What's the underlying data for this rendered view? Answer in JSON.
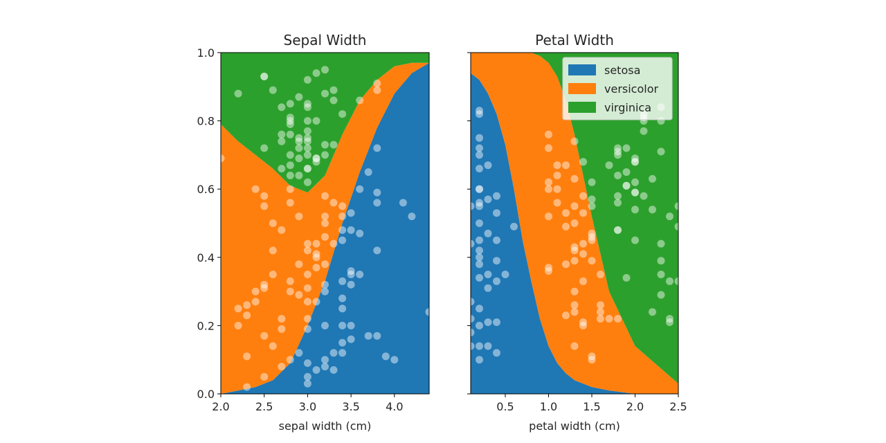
{
  "chart_data": [
    {
      "type": "area",
      "subtype": "stacked-probability",
      "title": "Sepal Width",
      "xlabel": "sepal width (cm)",
      "ylabel": "",
      "xlim": [
        2.0,
        4.4
      ],
      "ylim": [
        0.0,
        1.0
      ],
      "xticks": [
        "2.0",
        "2.5",
        "3.0",
        "3.5",
        "4.0"
      ],
      "yticks": [
        "0.0",
        "0.2",
        "0.4",
        "0.6",
        "0.8",
        "1.0"
      ],
      "categories": [
        "setosa",
        "versicolor",
        "virginica"
      ],
      "series": [
        {
          "name": "setosa",
          "x": [
            2.0,
            2.2,
            2.4,
            2.6,
            2.8,
            3.0,
            3.2,
            3.4,
            3.6,
            3.8,
            4.0,
            4.2,
            4.4
          ],
          "y": [
            0.0,
            0.01,
            0.02,
            0.04,
            0.09,
            0.2,
            0.33,
            0.5,
            0.65,
            0.78,
            0.88,
            0.94,
            0.97
          ]
        },
        {
          "name": "versicolor",
          "x": [
            2.0,
            2.2,
            2.4,
            2.6,
            2.8,
            3.0,
            3.2,
            3.4,
            3.6,
            3.8,
            4.0,
            4.2,
            4.4
          ],
          "y": [
            0.79,
            0.73,
            0.68,
            0.62,
            0.52,
            0.39,
            0.31,
            0.26,
            0.21,
            0.14,
            0.08,
            0.03,
            0.0
          ]
        },
        {
          "name": "virginica",
          "x": [
            2.0,
            2.2,
            2.4,
            2.6,
            2.8,
            3.0,
            3.2,
            3.4,
            3.6,
            3.8,
            4.0,
            4.2,
            4.4
          ],
          "y": [
            0.21,
            0.26,
            0.3,
            0.34,
            0.39,
            0.41,
            0.36,
            0.24,
            0.14,
            0.08,
            0.04,
            0.03,
            0.03
          ]
        }
      ],
      "scatter": {
        "x": [
          2.3,
          2.5,
          2.7,
          2.8,
          2.9,
          3.0,
          3.0,
          3.1,
          3.2,
          3.3,
          3.4,
          3.5,
          3.8,
          3.0,
          3.2,
          2.5,
          2.6,
          3.4,
          3.0,
          3.4,
          3.1,
          3.2,
          3.5,
          3.6,
          3.0,
          3.4,
          3.5,
          3.2,
          3.1,
          3.4,
          4.1,
          4.2,
          3.1,
          3.2,
          3.5,
          3.6,
          3.0,
          3.4,
          3.5,
          2.3,
          3.2,
          3.5,
          3.8,
          3.0,
          3.8,
          3.2,
          3.7,
          3.3,
          3.6,
          3.4,
          3.8,
          3.7,
          3.3,
          3.9,
          3.8,
          3.4,
          3.5,
          4.0,
          4.4,
          3.2,
          2.0,
          2.2,
          2.2,
          2.3,
          2.3,
          2.4,
          2.4,
          2.5,
          2.5,
          2.6,
          2.6,
          2.7,
          2.7,
          2.8,
          2.8,
          2.9,
          2.9,
          3.0,
          3.0,
          3.1,
          3.1,
          3.2,
          3.3,
          3.4,
          2.5,
          2.6,
          2.7,
          2.8,
          2.9,
          3.0,
          3.2,
          3.4,
          2.4,
          2.5,
          2.7,
          2.8,
          2.9,
          3.0,
          3.1,
          2.2,
          2.5,
          2.6,
          2.7,
          2.8,
          2.8,
          2.9,
          3.0,
          3.0,
          3.1,
          3.2,
          3.2,
          3.3,
          3.4,
          3.6,
          3.8,
          3.8,
          2.5,
          2.8,
          3.0,
          2.9,
          3.0,
          3.1,
          2.8,
          3.0,
          2.7,
          2.8,
          2.9,
          3.0,
          3.0,
          2.9,
          2.8,
          3.2,
          3.3,
          2.7,
          3.2,
          2.5,
          3.0,
          3.1,
          3.0,
          2.9,
          3.1,
          3.0,
          2.8,
          3.0,
          2.8,
          3.3
        ],
        "y": [
          0.02,
          0.05,
          0.08,
          0.1,
          0.12,
          0.03,
          0.05,
          0.07,
          0.1,
          0.12,
          0.15,
          0.16,
          0.17,
          0.19,
          0.2,
          0.17,
          0.14,
          0.2,
          0.22,
          0.25,
          0.27,
          0.3,
          0.32,
          0.35,
          0.27,
          0.33,
          0.35,
          0.38,
          0.4,
          0.45,
          0.56,
          0.52,
          0.44,
          0.5,
          0.48,
          0.47,
          0.42,
          0.12,
          0.2,
          0.11,
          0.08,
          0.36,
          0.42,
          0.09,
          0.72,
          0.58,
          0.65,
          0.56,
          0.6,
          0.52,
          0.59,
          0.17,
          0.07,
          0.11,
          0.56,
          0.28,
          0.53,
          0.1,
          0.24,
          0.32,
          0.69,
          0.2,
          0.25,
          0.26,
          0.23,
          0.27,
          0.3,
          0.32,
          0.31,
          0.42,
          0.35,
          0.22,
          0.19,
          0.3,
          0.33,
          0.29,
          0.38,
          0.35,
          0.31,
          0.41,
          0.37,
          0.46,
          0.44,
          0.48,
          0.55,
          0.5,
          0.48,
          0.56,
          0.52,
          0.44,
          0.52,
          0.55,
          0.6,
          0.58,
          0.66,
          0.67,
          0.69,
          0.7,
          0.69,
          0.88,
          0.93,
          0.89,
          0.84,
          0.85,
          0.79,
          0.87,
          0.92,
          0.84,
          0.94,
          0.88,
          0.73,
          0.86,
          0.82,
          0.86,
          0.91,
          0.89,
          0.72,
          0.7,
          0.66,
          0.64,
          0.72,
          0.68,
          0.8,
          0.75,
          0.76,
          0.76,
          0.75,
          0.8,
          0.85,
          0.74,
          0.81,
          0.95,
          0.89,
          0.74,
          0.7,
          0.93,
          0.77,
          0.8,
          0.74,
          0.72,
          0.69,
          0.66,
          0.6,
          0.62,
          0.64,
          0.73
        ]
      }
    },
    {
      "type": "area",
      "subtype": "stacked-probability",
      "title": "Petal Width",
      "xlabel": "petal width (cm)",
      "ylabel": "",
      "xlim": [
        0.1,
        2.5
      ],
      "ylim": [
        0.0,
        1.0
      ],
      "xticks": [
        "0.5",
        "1.0",
        "1.5",
        "2.0",
        "2.5"
      ],
      "yticks": [
        "0.0",
        "0.2",
        "0.4",
        "0.6",
        "0.8",
        "1.0"
      ],
      "categories": [
        "setosa",
        "versicolor",
        "virginica"
      ],
      "series": [
        {
          "name": "setosa",
          "x": [
            0.1,
            0.2,
            0.3,
            0.4,
            0.5,
            0.6,
            0.7,
            0.8,
            0.9,
            1.0,
            1.1,
            1.2,
            1.3,
            1.5,
            1.7,
            2.0,
            2.5
          ],
          "y": [
            0.94,
            0.92,
            0.88,
            0.82,
            0.73,
            0.6,
            0.45,
            0.33,
            0.22,
            0.14,
            0.09,
            0.06,
            0.04,
            0.02,
            0.01,
            0.0,
            0.0
          ]
        },
        {
          "name": "versicolor",
          "x": [
            0.1,
            0.2,
            0.3,
            0.4,
            0.5,
            0.6,
            0.7,
            0.8,
            0.9,
            1.0,
            1.1,
            1.2,
            1.3,
            1.5,
            1.7,
            2.0,
            2.5
          ],
          "y": [
            0.06,
            0.08,
            0.12,
            0.18,
            0.27,
            0.4,
            0.55,
            0.67,
            0.77,
            0.83,
            0.84,
            0.8,
            0.72,
            0.5,
            0.29,
            0.14,
            0.03
          ]
        },
        {
          "name": "virginica",
          "x": [
            0.1,
            0.2,
            0.3,
            0.4,
            0.5,
            0.6,
            0.7,
            0.8,
            0.9,
            1.0,
            1.1,
            1.2,
            1.3,
            1.5,
            1.7,
            2.0,
            2.5
          ],
          "y": [
            0.0,
            0.0,
            0.0,
            0.0,
            0.0,
            0.0,
            0.0,
            0.0,
            0.01,
            0.03,
            0.07,
            0.14,
            0.24,
            0.48,
            0.7,
            0.86,
            0.97
          ]
        }
      ],
      "scatter": {
        "x": [
          0.1,
          0.1,
          0.1,
          0.1,
          0.2,
          0.2,
          0.2,
          0.2,
          0.2,
          0.2,
          0.2,
          0.2,
          0.2,
          0.2,
          0.2,
          0.2,
          0.2,
          0.2,
          0.2,
          0.2,
          0.3,
          0.3,
          0.3,
          0.3,
          0.3,
          0.3,
          0.4,
          0.4,
          0.4,
          0.4,
          0.4,
          0.4,
          0.5,
          0.6,
          0.1,
          0.2,
          0.2,
          0.3,
          0.4,
          0.2,
          0.1,
          0.2,
          1.0,
          1.0,
          1.0,
          1.0,
          1.0,
          1.1,
          1.1,
          1.2,
          1.2,
          1.3,
          1.3,
          1.3,
          1.3,
          1.3,
          1.3,
          1.4,
          1.4,
          1.4,
          1.5,
          1.5,
          1.5,
          1.5,
          1.6,
          1.6,
          1.7,
          1.8,
          1.1,
          1.2,
          1.3,
          1.4,
          1.5,
          1.2,
          1.3,
          1.4,
          1.5,
          1.0,
          1.1,
          1.3,
          1.4,
          1.5,
          1.2,
          1.3,
          1.4,
          1.5,
          1.0,
          1.3,
          1.4,
          1.5,
          1.6,
          1.8,
          1.8,
          1.9,
          1.9,
          2.0,
          2.0,
          2.0,
          2.0,
          2.1,
          2.1,
          2.2,
          2.3,
          2.3,
          2.3,
          2.4,
          2.4,
          2.5,
          1.8,
          1.8,
          1.9,
          2.0,
          2.1,
          2.3,
          1.8,
          2.0,
          2.2,
          2.3,
          1.7,
          1.8,
          1.9,
          2.1,
          2.5,
          1.6,
          2.0,
          2.3,
          1.8,
          2.4,
          2.2,
          2.0,
          2.5,
          2.1,
          1.9,
          1.8,
          2.4,
          2.3
        ],
        "y": [
          0.44,
          0.55,
          0.27,
          0.14,
          0.82,
          0.75,
          0.7,
          0.66,
          0.6,
          0.55,
          0.5,
          0.45,
          0.38,
          0.34,
          0.25,
          0.2,
          0.14,
          0.1,
          0.6,
          0.4,
          0.57,
          0.47,
          0.35,
          0.31,
          0.21,
          0.14,
          0.58,
          0.53,
          0.39,
          0.33,
          0.21,
          0.12,
          0.35,
          0.49,
          0.22,
          0.83,
          0.72,
          0.67,
          0.45,
          0.56,
          0.18,
          0.42,
          0.76,
          0.72,
          0.62,
          0.52,
          0.36,
          0.64,
          0.56,
          0.67,
          0.49,
          0.74,
          0.63,
          0.43,
          0.39,
          0.26,
          0.14,
          0.68,
          0.58,
          0.41,
          0.62,
          0.55,
          0.47,
          0.39,
          0.26,
          0.22,
          0.22,
          0.22,
          0.6,
          0.23,
          0.3,
          0.21,
          0.1,
          0.38,
          0.5,
          0.33,
          0.45,
          0.37,
          0.67,
          0.55,
          0.44,
          0.57,
          0.53,
          0.24,
          0.2,
          0.11,
          0.6,
          0.42,
          0.53,
          0.46,
          0.35,
          0.71,
          0.58,
          0.72,
          0.65,
          0.69,
          0.62,
          0.54,
          0.45,
          0.82,
          0.58,
          0.24,
          0.71,
          0.39,
          0.29,
          0.52,
          0.21,
          0.33,
          0.64,
          0.48,
          0.61,
          0.68,
          0.77,
          0.84,
          0.7,
          0.59,
          0.63,
          0.35,
          0.67,
          0.48,
          0.61,
          0.8,
          0.49,
          0.24,
          0.59,
          0.8,
          0.56,
          0.22,
          0.54,
          0.68,
          0.55,
          0.81,
          0.34,
          0.72,
          0.33,
          0.44
        ]
      },
      "legend": {
        "position": "top-right",
        "entries": [
          "setosa",
          "versicolor",
          "virginica"
        ]
      }
    }
  ],
  "colors": {
    "setosa": "#1f77b4",
    "versicolor": "#ff7f0e",
    "virginica": "#2ca02c",
    "scatter": "#ffffff",
    "axis": "#000000",
    "text": "#262626"
  }
}
